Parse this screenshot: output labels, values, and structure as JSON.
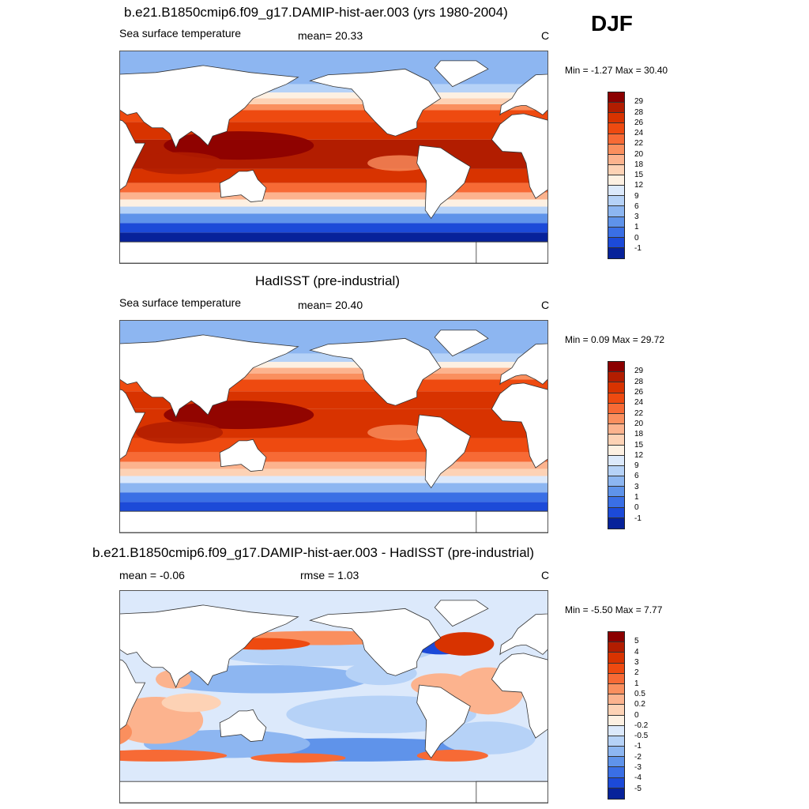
{
  "season": "DJF",
  "panels": [
    {
      "title": "b.e21.B1850cmip6.f09_g17.DAMIP-hist-aer.003 (yrs 1980-2004)",
      "left_label": "Sea surface temperature",
      "center_label": "mean=  20.33",
      "unit": "C",
      "minmax": "Min =  -1.27 Max =  30.40",
      "field": "model"
    },
    {
      "title": "HadISST (pre-industrial)",
      "left_label": "Sea surface temperature",
      "center_label": "mean=  20.40",
      "unit": "C",
      "minmax": "Min =   0.09 Max =  29.72",
      "field": "obs"
    },
    {
      "title": "b.e21.B1850cmip6.f09_g17.DAMIP-hist-aer.003 - HadISST (pre-industrial)",
      "left_label": "mean =  -0.06",
      "center_label": "rmse =   1.03",
      "unit": "C",
      "minmax": "Min =  -5.50 Max =   7.77",
      "field": "diff"
    }
  ],
  "colorbars": {
    "sst": {
      "labels": [
        "29",
        "28",
        "26",
        "24",
        "22",
        "20",
        "18",
        "15",
        "12",
        "9",
        "6",
        "3",
        "1",
        "0",
        "-1"
      ],
      "colors": [
        "#8b0000",
        "#b21d00",
        "#d83300",
        "#ee4a10",
        "#f76a35",
        "#fa8f5e",
        "#fcb38e",
        "#fdd2b5",
        "#fdf0e2",
        "#dce9fb",
        "#b6d2f7",
        "#8db6f1",
        "#5f93ea",
        "#3a6fe5",
        "#1c4ad8",
        "#07229a"
      ]
    },
    "diff": {
      "labels": [
        "5",
        "4",
        "3",
        "2",
        "1",
        "0.5",
        "0.2",
        "0",
        "-0.2",
        "-0.5",
        "-1",
        "-2",
        "-3",
        "-4",
        "-5"
      ],
      "colors": [
        "#8b0000",
        "#b21d00",
        "#d83300",
        "#ee4a10",
        "#f76a35",
        "#fa8f5e",
        "#fcb38e",
        "#fdd2b5",
        "#fdf0e2",
        "#dce9fb",
        "#b6d2f7",
        "#8db6f1",
        "#5f93ea",
        "#3a6fe5",
        "#1c4ad8",
        "#07229a"
      ]
    }
  }
}
